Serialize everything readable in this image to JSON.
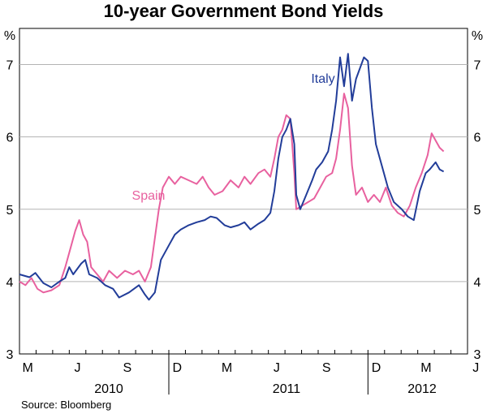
{
  "chart_data": {
    "type": "line",
    "title": "10-year Government Bond Yields",
    "ylabel_left": "%",
    "ylabel_right": "%",
    "ylim": [
      3,
      7.5
    ],
    "yticks": [
      "3",
      "4",
      "5",
      "6",
      "7"
    ],
    "xlim": [
      2010.25,
      2012.5
    ],
    "month_ticks": [
      "M",
      "J",
      "S",
      "D",
      "M",
      "J",
      "S",
      "D",
      "M",
      "J"
    ],
    "year_labels": [
      "2010",
      "2011",
      "2012"
    ],
    "source": "Source: Bloomberg",
    "colors": {
      "italy": "#223d99",
      "spain": "#e8619f"
    },
    "series": [
      {
        "name": "Italy",
        "color": "#223d99",
        "points": [
          [
            2010.25,
            4.1
          ],
          [
            2010.3,
            4.06
          ],
          [
            2010.33,
            4.12
          ],
          [
            2010.37,
            3.98
          ],
          [
            2010.41,
            3.92
          ],
          [
            2010.45,
            4.0
          ],
          [
            2010.48,
            4.05
          ],
          [
            2010.5,
            4.2
          ],
          [
            2010.52,
            4.1
          ],
          [
            2010.56,
            4.25
          ],
          [
            2010.58,
            4.3
          ],
          [
            2010.6,
            4.1
          ],
          [
            2010.64,
            4.05
          ],
          [
            2010.68,
            3.95
          ],
          [
            2010.72,
            3.9
          ],
          [
            2010.75,
            3.78
          ],
          [
            2010.8,
            3.85
          ],
          [
            2010.85,
            3.95
          ],
          [
            2010.88,
            3.82
          ],
          [
            2010.9,
            3.75
          ],
          [
            2010.93,
            3.85
          ],
          [
            2010.96,
            4.3
          ],
          [
            2011.0,
            4.5
          ],
          [
            2011.03,
            4.65
          ],
          [
            2011.06,
            4.72
          ],
          [
            2011.1,
            4.78
          ],
          [
            2011.14,
            4.82
          ],
          [
            2011.18,
            4.85
          ],
          [
            2011.21,
            4.9
          ],
          [
            2011.24,
            4.88
          ],
          [
            2011.28,
            4.78
          ],
          [
            2011.31,
            4.75
          ],
          [
            2011.35,
            4.78
          ],
          [
            2011.38,
            4.82
          ],
          [
            2011.41,
            4.72
          ],
          [
            2011.45,
            4.8
          ],
          [
            2011.48,
            4.85
          ],
          [
            2011.51,
            4.95
          ],
          [
            2011.53,
            5.25
          ],
          [
            2011.55,
            5.7
          ],
          [
            2011.57,
            6.0
          ],
          [
            2011.59,
            6.1
          ],
          [
            2011.61,
            6.25
          ],
          [
            2011.63,
            5.9
          ],
          [
            2011.64,
            5.2
          ],
          [
            2011.66,
            5.0
          ],
          [
            2011.69,
            5.2
          ],
          [
            2011.72,
            5.4
          ],
          [
            2011.74,
            5.55
          ],
          [
            2011.77,
            5.65
          ],
          [
            2011.8,
            5.8
          ],
          [
            2011.82,
            6.1
          ],
          [
            2011.84,
            6.5
          ],
          [
            2011.86,
            7.1
          ],
          [
            2011.88,
            6.7
          ],
          [
            2011.9,
            7.15
          ],
          [
            2011.92,
            6.5
          ],
          [
            2011.94,
            6.8
          ],
          [
            2011.96,
            6.95
          ],
          [
            2011.98,
            7.1
          ],
          [
            2012.0,
            7.05
          ],
          [
            2012.02,
            6.4
          ],
          [
            2012.04,
            5.9
          ],
          [
            2012.07,
            5.6
          ],
          [
            2012.1,
            5.3
          ],
          [
            2012.13,
            5.1
          ],
          [
            2012.17,
            5.0
          ],
          [
            2012.2,
            4.9
          ],
          [
            2012.23,
            4.85
          ],
          [
            2012.26,
            5.25
          ],
          [
            2012.29,
            5.5
          ],
          [
            2012.31,
            5.55
          ],
          [
            2012.34,
            5.65
          ],
          [
            2012.36,
            5.55
          ],
          [
            2012.38,
            5.52
          ]
        ]
      },
      {
        "name": "Spain",
        "color": "#e8619f",
        "points": [
          [
            2010.25,
            4.0
          ],
          [
            2010.28,
            3.95
          ],
          [
            2010.31,
            4.05
          ],
          [
            2010.34,
            3.9
          ],
          [
            2010.37,
            3.85
          ],
          [
            2010.41,
            3.88
          ],
          [
            2010.45,
            3.95
          ],
          [
            2010.48,
            4.2
          ],
          [
            2010.51,
            4.5
          ],
          [
            2010.53,
            4.7
          ],
          [
            2010.55,
            4.85
          ],
          [
            2010.57,
            4.65
          ],
          [
            2010.59,
            4.55
          ],
          [
            2010.61,
            4.2
          ],
          [
            2010.64,
            4.1
          ],
          [
            2010.67,
            4.0
          ],
          [
            2010.7,
            4.15
          ],
          [
            2010.74,
            4.05
          ],
          [
            2010.78,
            4.15
          ],
          [
            2010.82,
            4.1
          ],
          [
            2010.85,
            4.15
          ],
          [
            2010.88,
            4.0
          ],
          [
            2010.91,
            4.2
          ],
          [
            2010.93,
            4.6
          ],
          [
            2010.95,
            5.0
          ],
          [
            2010.97,
            5.3
          ],
          [
            2011.0,
            5.45
          ],
          [
            2011.03,
            5.35
          ],
          [
            2011.06,
            5.45
          ],
          [
            2011.1,
            5.4
          ],
          [
            2011.14,
            5.35
          ],
          [
            2011.17,
            5.45
          ],
          [
            2011.2,
            5.3
          ],
          [
            2011.23,
            5.2
          ],
          [
            2011.27,
            5.25
          ],
          [
            2011.31,
            5.4
          ],
          [
            2011.35,
            5.3
          ],
          [
            2011.38,
            5.45
          ],
          [
            2011.41,
            5.35
          ],
          [
            2011.45,
            5.5
          ],
          [
            2011.48,
            5.55
          ],
          [
            2011.51,
            5.45
          ],
          [
            2011.53,
            5.7
          ],
          [
            2011.55,
            6.0
          ],
          [
            2011.57,
            6.1
          ],
          [
            2011.59,
            6.3
          ],
          [
            2011.61,
            6.25
          ],
          [
            2011.63,
            5.5
          ],
          [
            2011.64,
            5.0
          ],
          [
            2011.67,
            5.05
          ],
          [
            2011.7,
            5.1
          ],
          [
            2011.73,
            5.15
          ],
          [
            2011.76,
            5.3
          ],
          [
            2011.79,
            5.45
          ],
          [
            2011.82,
            5.5
          ],
          [
            2011.84,
            5.7
          ],
          [
            2011.86,
            6.1
          ],
          [
            2011.88,
            6.6
          ],
          [
            2011.9,
            6.4
          ],
          [
            2011.92,
            5.6
          ],
          [
            2011.94,
            5.2
          ],
          [
            2011.97,
            5.3
          ],
          [
            2012.0,
            5.1
          ],
          [
            2012.03,
            5.2
          ],
          [
            2012.06,
            5.1
          ],
          [
            2012.09,
            5.3
          ],
          [
            2012.12,
            5.05
          ],
          [
            2012.15,
            4.95
          ],
          [
            2012.18,
            4.9
          ],
          [
            2012.21,
            5.05
          ],
          [
            2012.24,
            5.3
          ],
          [
            2012.27,
            5.5
          ],
          [
            2012.3,
            5.75
          ],
          [
            2012.32,
            6.05
          ],
          [
            2012.34,
            5.95
          ],
          [
            2012.36,
            5.85
          ],
          [
            2012.38,
            5.8
          ]
        ]
      }
    ]
  }
}
